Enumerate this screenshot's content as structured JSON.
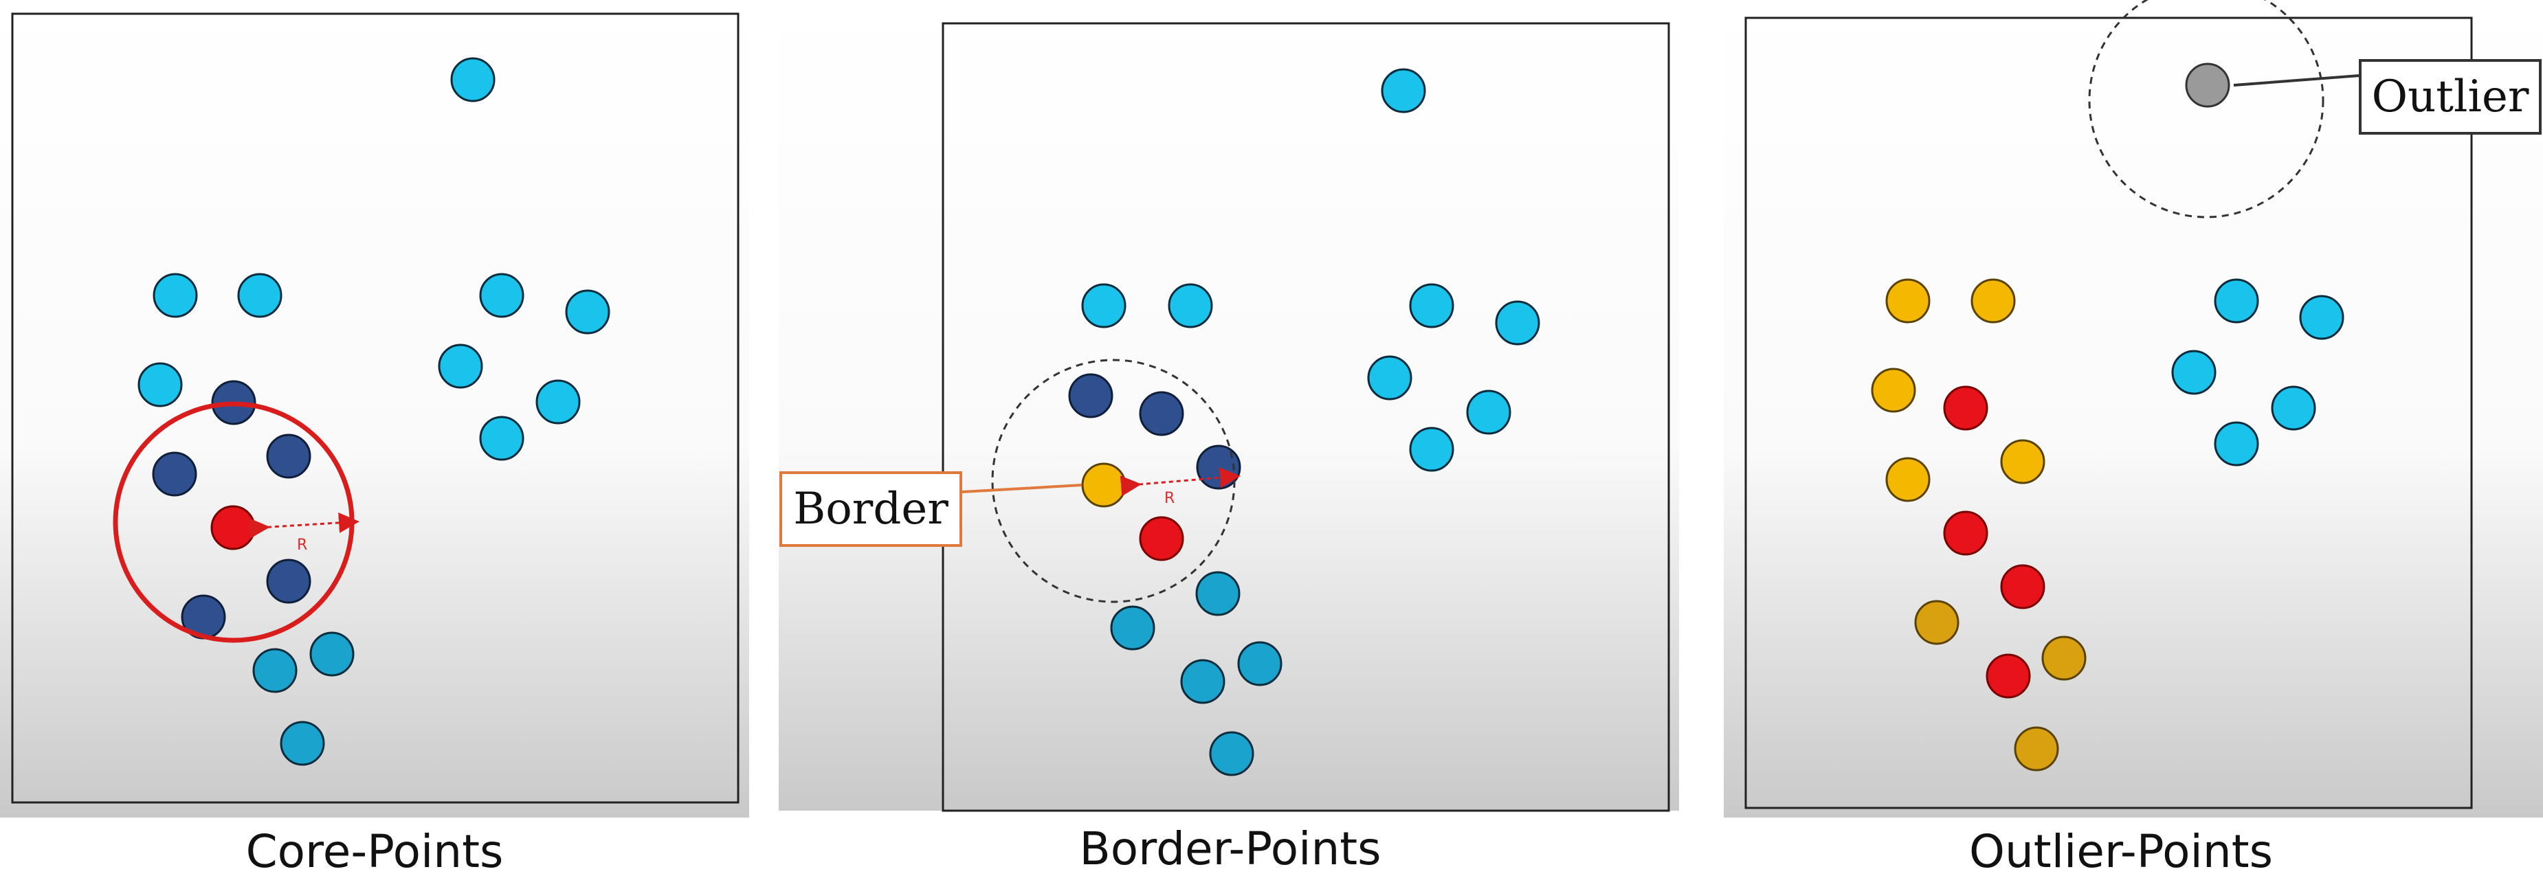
{
  "captions": {
    "core": "Core-Points",
    "border": "Border-Points",
    "outlier": "Outlier-Points"
  },
  "labels": {
    "radius": "R",
    "border_callout": "Border",
    "outlier_callout": "Outlier"
  },
  "colors": {
    "noise_cyan": "#19c3ec",
    "cluster_teal": "#1aa3cc",
    "core_navy": "#2f4f8f",
    "core_red": "#e8121b",
    "border_yellow": "#f5b800",
    "border_dark_yellow": "#d9a10f",
    "outlier_gray": "#9a9a9a",
    "radius_red": "#d91c1c",
    "callout_orange": "#e07a3c"
  }
}
